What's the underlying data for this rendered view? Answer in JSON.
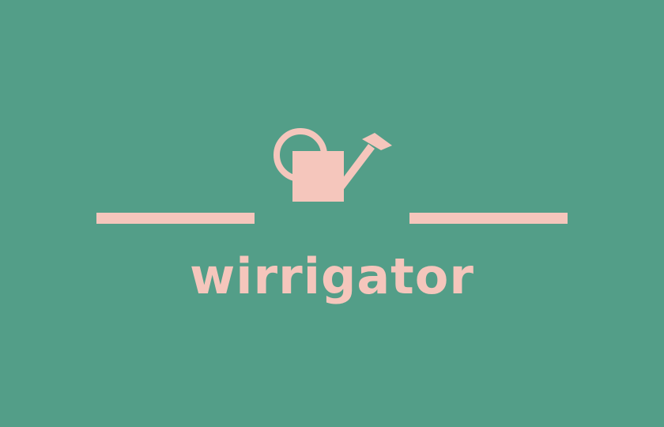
{
  "brand": {
    "name": "wirrigator",
    "icon": "watering-can-icon"
  },
  "colors": {
    "background": "#539e88",
    "accent": "#f5c6bc"
  }
}
